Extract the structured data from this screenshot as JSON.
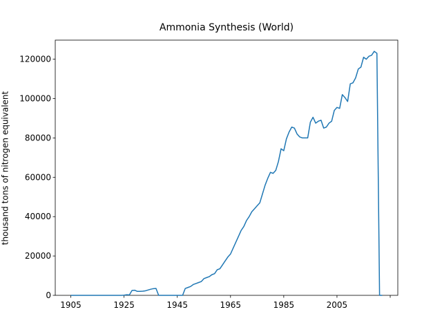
{
  "chart_data": {
    "type": "line",
    "title": "Ammonia Synthesis (World)",
    "ylabel": "thousand tons of nitrogen equivalent",
    "x": [
      1905,
      1906,
      1907,
      1908,
      1909,
      1910,
      1911,
      1912,
      1913,
      1914,
      1915,
      1916,
      1917,
      1918,
      1919,
      1920,
      1921,
      1922,
      1923,
      1924,
      1925,
      1926,
      1927,
      1928,
      1929,
      1930,
      1931,
      1932,
      1933,
      1934,
      1935,
      1936,
      1937,
      1938,
      1939,
      1940,
      1941,
      1942,
      1943,
      1944,
      1945,
      1946,
      1947,
      1948,
      1949,
      1950,
      1951,
      1952,
      1953,
      1954,
      1955,
      1956,
      1957,
      1958,
      1959,
      1960,
      1961,
      1962,
      1963,
      1964,
      1965,
      1966,
      1967,
      1968,
      1969,
      1970,
      1971,
      1972,
      1973,
      1974,
      1975,
      1976,
      1977,
      1978,
      1979,
      1980,
      1981,
      1982,
      1983,
      1984,
      1985,
      1986,
      1987,
      1988,
      1989,
      1990,
      1991,
      1992,
      1993,
      1994,
      1995,
      1996,
      1997,
      1998,
      1999,
      2000,
      2001,
      2002,
      2003,
      2004,
      2005,
      2006,
      2007,
      2008,
      2009,
      2010,
      2011,
      2012,
      2013,
      2014,
      2015,
      2016,
      2017,
      2018,
      2019,
      2020,
      2021,
      2022
    ],
    "series": [
      {
        "name": "World",
        "color": "#1f77b4",
        "values": [
          0,
          0,
          0,
          0,
          0,
          0,
          0,
          0,
          0,
          0,
          0,
          0,
          0,
          0,
          0,
          0,
          0,
          0,
          0,
          0,
          100,
          300,
          200,
          2500,
          2600,
          2000,
          2000,
          2100,
          2300,
          2700,
          3100,
          3400,
          3500,
          0,
          0,
          0,
          0,
          0,
          0,
          0,
          0,
          0,
          0,
          3500,
          4000,
          4500,
          5500,
          6000,
          6500,
          7000,
          8500,
          9000,
          9500,
          10500,
          11000,
          13000,
          13500,
          15500,
          17500,
          19500,
          21000,
          24000,
          27000,
          30000,
          33000,
          35000,
          38000,
          40000,
          42500,
          44000,
          45500,
          47000,
          51500,
          56000,
          59500,
          62500,
          62000,
          63500,
          68000,
          74500,
          73500,
          79500,
          83000,
          85500,
          85000,
          82000,
          80500,
          80000,
          80000,
          80000,
          88000,
          90500,
          87500,
          88500,
          89000,
          85000,
          85500,
          87500,
          88500,
          94000,
          95500,
          95000,
          102000,
          100500,
          98500,
          107500,
          108000,
          110500,
          115000,
          116000,
          121000,
          120000,
          121500,
          122000,
          124000,
          123000,
          0,
          0
        ]
      }
    ],
    "xlim": [
      1899.15,
      2027.85
    ],
    "ylim": [
      0,
      129700
    ],
    "xticks": [
      1905,
      1925,
      1945,
      1965,
      1985,
      2005,
      {
        "value": 2025,
        "label": null
      }
    ],
    "yticks": [
      0,
      20000,
      40000,
      60000,
      80000,
      100000,
      120000
    ]
  }
}
